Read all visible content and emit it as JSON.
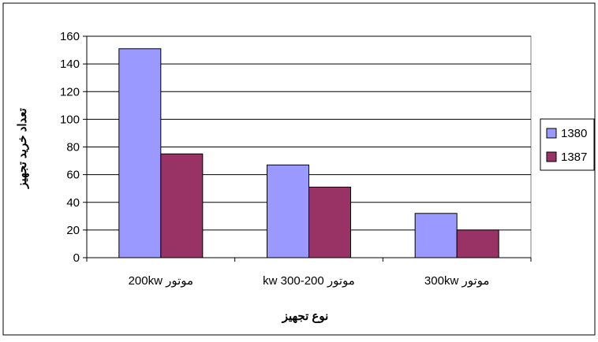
{
  "chart_data": {
    "type": "bar",
    "title": "",
    "xlabel": "نوع تجهیز",
    "ylabel": "تعداد خرید تجهیز",
    "categories": [
      "موتور 200kw",
      "موتور 200-300 kw",
      "موتور 300kw"
    ],
    "series": [
      {
        "name": "1380",
        "values": [
          151,
          67,
          32
        ],
        "color": "#9999ff"
      },
      {
        "name": "1387",
        "values": [
          75,
          51,
          20
        ],
        "color": "#993366"
      }
    ],
    "ylim": [
      0,
      160
    ],
    "yticks": [
      0,
      20,
      40,
      60,
      80,
      100,
      120,
      140,
      160
    ],
    "grid": true,
    "legend": "right",
    "plot_background": "#ffffff"
  }
}
